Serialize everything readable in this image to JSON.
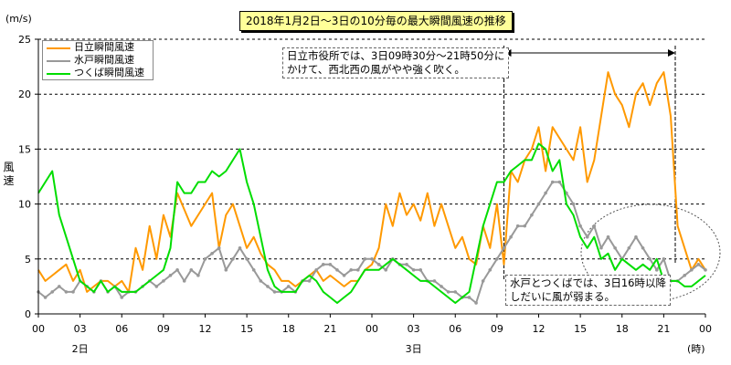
{
  "unit_label": "(m/s)",
  "y_axis_label": "風速",
  "day_labels": [
    {
      "text": "2日",
      "hour": 3
    },
    {
      "text": "3日",
      "hour": 27
    }
  ],
  "time_unit": "(時)",
  "annotation_top": [
    "日立市役所では、3日09時30分〜21時50分に",
    "かけて、西北西の風がやや強く吹く。"
  ],
  "annotation_bottom": [
    "水戸とつくばでは、3日16時以降",
    "しだいに風が弱まる。"
  ],
  "colors": {
    "hitachi": "#ff9900",
    "mito": "#999999",
    "tsukuba": "#00dd00",
    "grid": "#000000"
  },
  "chart_data": {
    "type": "line",
    "title": "2018年1月2日〜3日の10分毎の最大瞬間風速の推移",
    "xlabel": "(時)",
    "ylabel": "風速 (m/s)",
    "x_unit": "hours from 2018-01-02 00:00",
    "xlim": [
      0,
      48
    ],
    "ylim": [
      0,
      25
    ],
    "yticks": [
      0,
      5,
      10,
      15,
      20,
      25
    ],
    "xtick_labels": [
      "00",
      "03",
      "06",
      "09",
      "12",
      "15",
      "18",
      "21",
      "00",
      "03",
      "06",
      "09",
      "12",
      "15",
      "18",
      "21",
      "00"
    ],
    "grid": "horizontal dashed",
    "legend_position": "top-left",
    "event_window": {
      "start": 33.5,
      "end": 45.83,
      "label": "日立市役所 西北西の風がやや強く吹く"
    },
    "series": [
      {
        "name": "日立瞬間風速",
        "key": "hitachi",
        "marker": "none",
        "x": [
          0,
          0.5,
          1,
          1.5,
          2,
          2.5,
          3,
          3.5,
          4,
          4.5,
          5,
          5.5,
          6,
          6.5,
          7,
          7.5,
          8,
          8.5,
          9,
          9.5,
          10,
          10.5,
          11,
          11.5,
          12,
          12.5,
          13,
          13.5,
          14,
          14.5,
          15,
          15.5,
          16,
          16.5,
          17,
          17.5,
          18,
          18.5,
          19,
          19.5,
          20,
          20.5,
          21,
          21.5,
          22,
          22.5,
          23,
          23.5,
          24,
          24.5,
          25,
          25.5,
          26,
          26.5,
          27,
          27.5,
          28,
          28.5,
          29,
          29.5,
          30,
          30.5,
          31,
          31.5,
          32,
          32.5,
          33,
          33.5,
          34,
          34.5,
          35,
          35.5,
          36,
          36.5,
          37,
          37.5,
          38,
          38.5,
          39,
          39.5,
          40,
          40.5,
          41,
          41.5,
          42,
          42.5,
          43,
          43.5,
          44,
          44.5,
          45,
          45.5,
          46,
          46.5,
          47,
          47.5,
          48
        ],
        "y": [
          4,
          3,
          3.5,
          4,
          4.5,
          3,
          4,
          2,
          2.5,
          3,
          3,
          2.5,
          3,
          2,
          6,
          4,
          8,
          5,
          9,
          7,
          11,
          9.5,
          8,
          9,
          10,
          11,
          6,
          9,
          10,
          8,
          6,
          7,
          5.5,
          4.5,
          4,
          3,
          3,
          2.5,
          3,
          3.5,
          4,
          3,
          3.5,
          3,
          2.5,
          3,
          3,
          4,
          4.5,
          6,
          10,
          8,
          11,
          9,
          10,
          8.5,
          11,
          8,
          10,
          8,
          6,
          7,
          5,
          4.5,
          8,
          6,
          10,
          4.5,
          13,
          12,
          14,
          15,
          17,
          13,
          17,
          16,
          15,
          14,
          17,
          12,
          14,
          18,
          22,
          20,
          19,
          17,
          20,
          21,
          19,
          21,
          22,
          18,
          8,
          6,
          4,
          5,
          4
        ]
      },
      {
        "name": "水戸瞬間風速",
        "key": "mito",
        "marker": "dot",
        "x": [
          0,
          0.5,
          1,
          1.5,
          2,
          2.5,
          3,
          3.5,
          4,
          4.5,
          5,
          5.5,
          6,
          6.5,
          7,
          7.5,
          8,
          8.5,
          9,
          9.5,
          10,
          10.5,
          11,
          11.5,
          12,
          12.5,
          13,
          13.5,
          14,
          14.5,
          15,
          15.5,
          16,
          16.5,
          17,
          17.5,
          18,
          18.5,
          19,
          19.5,
          20,
          20.5,
          21,
          21.5,
          22,
          22.5,
          23,
          23.5,
          24,
          24.5,
          25,
          25.5,
          26,
          26.5,
          27,
          27.5,
          28,
          28.5,
          29,
          29.5,
          30,
          30.5,
          31,
          31.5,
          32,
          32.5,
          33,
          33.5,
          34,
          34.5,
          35,
          35.5,
          36,
          36.5,
          37,
          37.5,
          38,
          38.5,
          39,
          39.5,
          40,
          40.5,
          41,
          41.5,
          42,
          42.5,
          43,
          43.5,
          44,
          44.5,
          45,
          45.5,
          46,
          46.5,
          47,
          47.5,
          48
        ],
        "y": [
          2,
          1.5,
          2,
          2.5,
          2,
          2,
          3,
          2.5,
          2,
          3,
          2,
          2.5,
          1.5,
          2,
          2,
          2.5,
          3,
          2.5,
          3,
          3.5,
          4,
          3,
          4,
          3.5,
          5,
          5.5,
          6,
          4,
          5,
          6,
          5,
          4,
          3,
          2.5,
          2,
          2,
          2.5,
          2,
          3,
          3,
          4,
          4.5,
          4.5,
          4,
          3.5,
          4,
          4,
          5,
          5,
          4.5,
          4,
          5,
          4.5,
          4.5,
          4,
          4,
          3,
          3,
          2.5,
          2,
          2,
          1.5,
          1.5,
          1,
          3,
          4,
          5,
          6,
          7,
          8,
          8,
          9,
          10,
          11,
          12,
          12,
          11,
          10,
          8,
          7,
          8,
          6,
          7,
          6,
          5,
          6,
          7,
          6,
          5,
          4,
          5,
          3,
          3,
          3.5,
          4,
          4.5,
          4
        ]
      },
      {
        "name": "つくば瞬間風速",
        "key": "tsukuba",
        "marker": "none",
        "x": [
          0,
          0.5,
          1,
          1.5,
          2,
          2.5,
          3,
          3.5,
          4,
          4.5,
          5,
          5.5,
          6,
          6.5,
          7,
          7.5,
          8,
          8.5,
          9,
          9.5,
          10,
          10.5,
          11,
          11.5,
          12,
          12.5,
          13,
          13.5,
          14,
          14.5,
          15,
          15.5,
          16,
          16.5,
          17,
          17.5,
          18,
          18.5,
          19,
          19.5,
          20,
          20.5,
          21,
          21.5,
          22,
          22.5,
          23,
          23.5,
          24,
          24.5,
          25,
          25.5,
          26,
          26.5,
          27,
          27.5,
          28,
          28.5,
          29,
          29.5,
          30,
          30.5,
          31,
          31.5,
          32,
          32.5,
          33,
          33.5,
          34,
          34.5,
          35,
          35.5,
          36,
          36.5,
          37,
          37.5,
          38,
          38.5,
          39,
          39.5,
          40,
          40.5,
          41,
          41.5,
          42,
          42.5,
          43,
          43.5,
          44,
          44.5,
          45,
          45.5,
          46,
          46.5,
          47,
          47.5,
          48
        ],
        "y": [
          11,
          12,
          13,
          9,
          7,
          5,
          3,
          2.5,
          2,
          3,
          2,
          2.5,
          2,
          2,
          2,
          2.5,
          3,
          3.5,
          4,
          6,
          12,
          11,
          11,
          12,
          12,
          13,
          12.5,
          13,
          14,
          15,
          12,
          10,
          7,
          4,
          2.5,
          2,
          2,
          2,
          3,
          3.5,
          3,
          2,
          1.5,
          1,
          1.5,
          2,
          3,
          4,
          4,
          4,
          4.5,
          5,
          4.5,
          4,
          3.5,
          3,
          3,
          2.5,
          2,
          1.5,
          1,
          1.5,
          2,
          5,
          8,
          10,
          12,
          12,
          13,
          13.5,
          14,
          14,
          15.5,
          15,
          13,
          14,
          10,
          9,
          7,
          6,
          7,
          5,
          5.5,
          4,
          5,
          4.5,
          4,
          4.5,
          4,
          5,
          3,
          3,
          3,
          2.5,
          2.5,
          3,
          3.5
        ]
      }
    ]
  }
}
